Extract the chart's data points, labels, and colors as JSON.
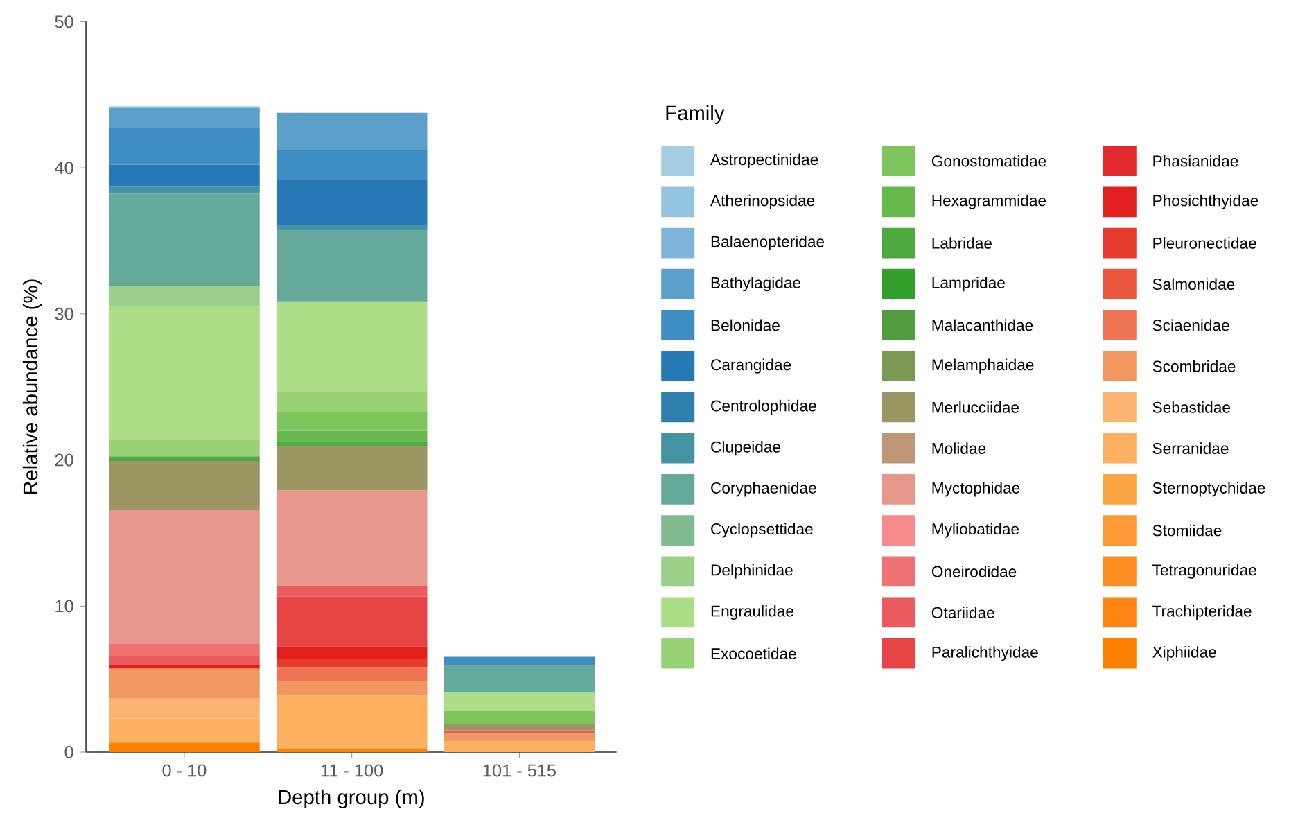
{
  "chart_data": {
    "type": "bar",
    "stacked": true,
    "categories": [
      "0 - 10",
      "11 - 100",
      "101 - 515"
    ],
    "xlabel": "Depth group (m)",
    "ylabel": "Relative abundance (%)",
    "legend_title": "Family",
    "legend": "right",
    "ylim": [
      0,
      50
    ],
    "yticks": [
      0,
      10,
      20,
      30,
      40,
      50
    ],
    "series": [
      {
        "name": "Xiphiidae",
        "color": "#ff7f00",
        "values": [
          0.65,
          0.2,
          null
        ]
      },
      {
        "name": "Trachipteridae",
        "color": "#fe8511",
        "values": [
          null,
          null,
          null
        ]
      },
      {
        "name": "Tetragonuridae",
        "color": "#fe8e22",
        "values": [
          null,
          null,
          null
        ]
      },
      {
        "name": "Stomiidae",
        "color": "#fe9933",
        "values": [
          null,
          null,
          null
        ]
      },
      {
        "name": "Sternoptychidae",
        "color": "#fda443",
        "values": [
          null,
          null,
          null
        ]
      },
      {
        "name": "Serranidae",
        "color": "#fdb060",
        "values": [
          1.65,
          3.67,
          0.73
        ]
      },
      {
        "name": "Sebastidae",
        "color": "#fbb46f",
        "values": [
          1.37,
          null,
          null
        ]
      },
      {
        "name": "Scombridae",
        "color": "#f39760",
        "values": [
          2.05,
          1.01,
          0.57
        ]
      },
      {
        "name": "Sciaenidae",
        "color": "#ef7453",
        "values": [
          null,
          0.95,
          null
        ]
      },
      {
        "name": "Salmonidae",
        "color": "#eb573f",
        "values": [
          null,
          null,
          null
        ]
      },
      {
        "name": "Pleuronectidae",
        "color": "#e73b2d",
        "values": [
          null,
          0.54,
          null
        ]
      },
      {
        "name": "Phosichthyidae",
        "color": "#e31e1e",
        "values": [
          0.25,
          0.88,
          null
        ]
      },
      {
        "name": "Phasianidae",
        "color": "#e42a2f",
        "values": [
          null,
          null,
          null
        ]
      },
      {
        "name": "Paralichthyidae",
        "color": "#e74446",
        "values": [
          null,
          3.4,
          null
        ]
      },
      {
        "name": "Otariidae",
        "color": "#eb5b5d",
        "values": [
          0.58,
          0.73,
          0.19
        ]
      },
      {
        "name": "Oneirodidae",
        "color": "#f17273",
        "values": [
          0.85,
          null,
          null
        ]
      },
      {
        "name": "Myliobatidae",
        "color": "#f78a8a",
        "values": [
          null,
          null,
          null
        ]
      },
      {
        "name": "Myctophidae",
        "color": "#e7978c",
        "values": [
          9.2,
          6.55,
          null
        ]
      },
      {
        "name": "Molidae",
        "color": "#c09679",
        "values": [
          null,
          null,
          null
        ]
      },
      {
        "name": "Merlucciidae",
        "color": "#9b9664",
        "values": [
          3.33,
          3.01,
          0.41
        ]
      },
      {
        "name": "Melamphaidae",
        "color": "#7b9953",
        "values": [
          null,
          null,
          null
        ]
      },
      {
        "name": "Malacanthidae",
        "color": "#519c3e",
        "values": [
          null,
          null,
          null
        ]
      },
      {
        "name": "Lampridae",
        "color": "#33a02c",
        "values": [
          null,
          null,
          null
        ]
      },
      {
        "name": "Labridae",
        "color": "#4daa3c",
        "values": [
          0.32,
          0.35,
          null
        ]
      },
      {
        "name": "Hexagrammidae",
        "color": "#66b84d",
        "values": [
          null,
          0.7,
          null
        ]
      },
      {
        "name": "Gonostomatidae",
        "color": "#7fc55e",
        "values": [
          null,
          1.26,
          0.95
        ]
      },
      {
        "name": "Exocoetidae",
        "color": "#98d275",
        "values": [
          1.15,
          1.43,
          null
        ]
      },
      {
        "name": "Engraulidae",
        "color": "#addd86",
        "values": [
          9.15,
          6.18,
          1.27
        ]
      },
      {
        "name": "Delphinidae",
        "color": "#9bd08b",
        "values": [
          1.35,
          null,
          null
        ]
      },
      {
        "name": "Cyclopsettidae",
        "color": "#80bb91",
        "values": [
          null,
          null,
          null
        ]
      },
      {
        "name": "Coryphaenidae",
        "color": "#65a99b",
        "values": [
          6.34,
          4.84,
          1.84
        ]
      },
      {
        "name": "Clupeidae",
        "color": "#4493a3",
        "values": [
          0.46,
          0.4,
          null
        ]
      },
      {
        "name": "Centrolophidae",
        "color": "#2e7fad",
        "values": [
          null,
          null,
          null
        ]
      },
      {
        "name": "Carangidae",
        "color": "#2679b5",
        "values": [
          1.5,
          3.07,
          null
        ]
      },
      {
        "name": "Belonidae",
        "color": "#3f8ec3",
        "values": [
          2.55,
          2.06,
          0.57
        ]
      },
      {
        "name": "Bathylagidae",
        "color": "#5b9fcb",
        "values": [
          1.35,
          2.53,
          null
        ]
      },
      {
        "name": "Balaenopteridae",
        "color": "#7fb5d8",
        "values": [
          0.1,
          null,
          null
        ]
      },
      {
        "name": "Atherinopsidae",
        "color": "#94c4df",
        "values": [
          null,
          null,
          null
        ]
      },
      {
        "name": "Astropectinidae",
        "color": "#a6cee3",
        "values": [
          null,
          null,
          null
        ]
      }
    ]
  }
}
